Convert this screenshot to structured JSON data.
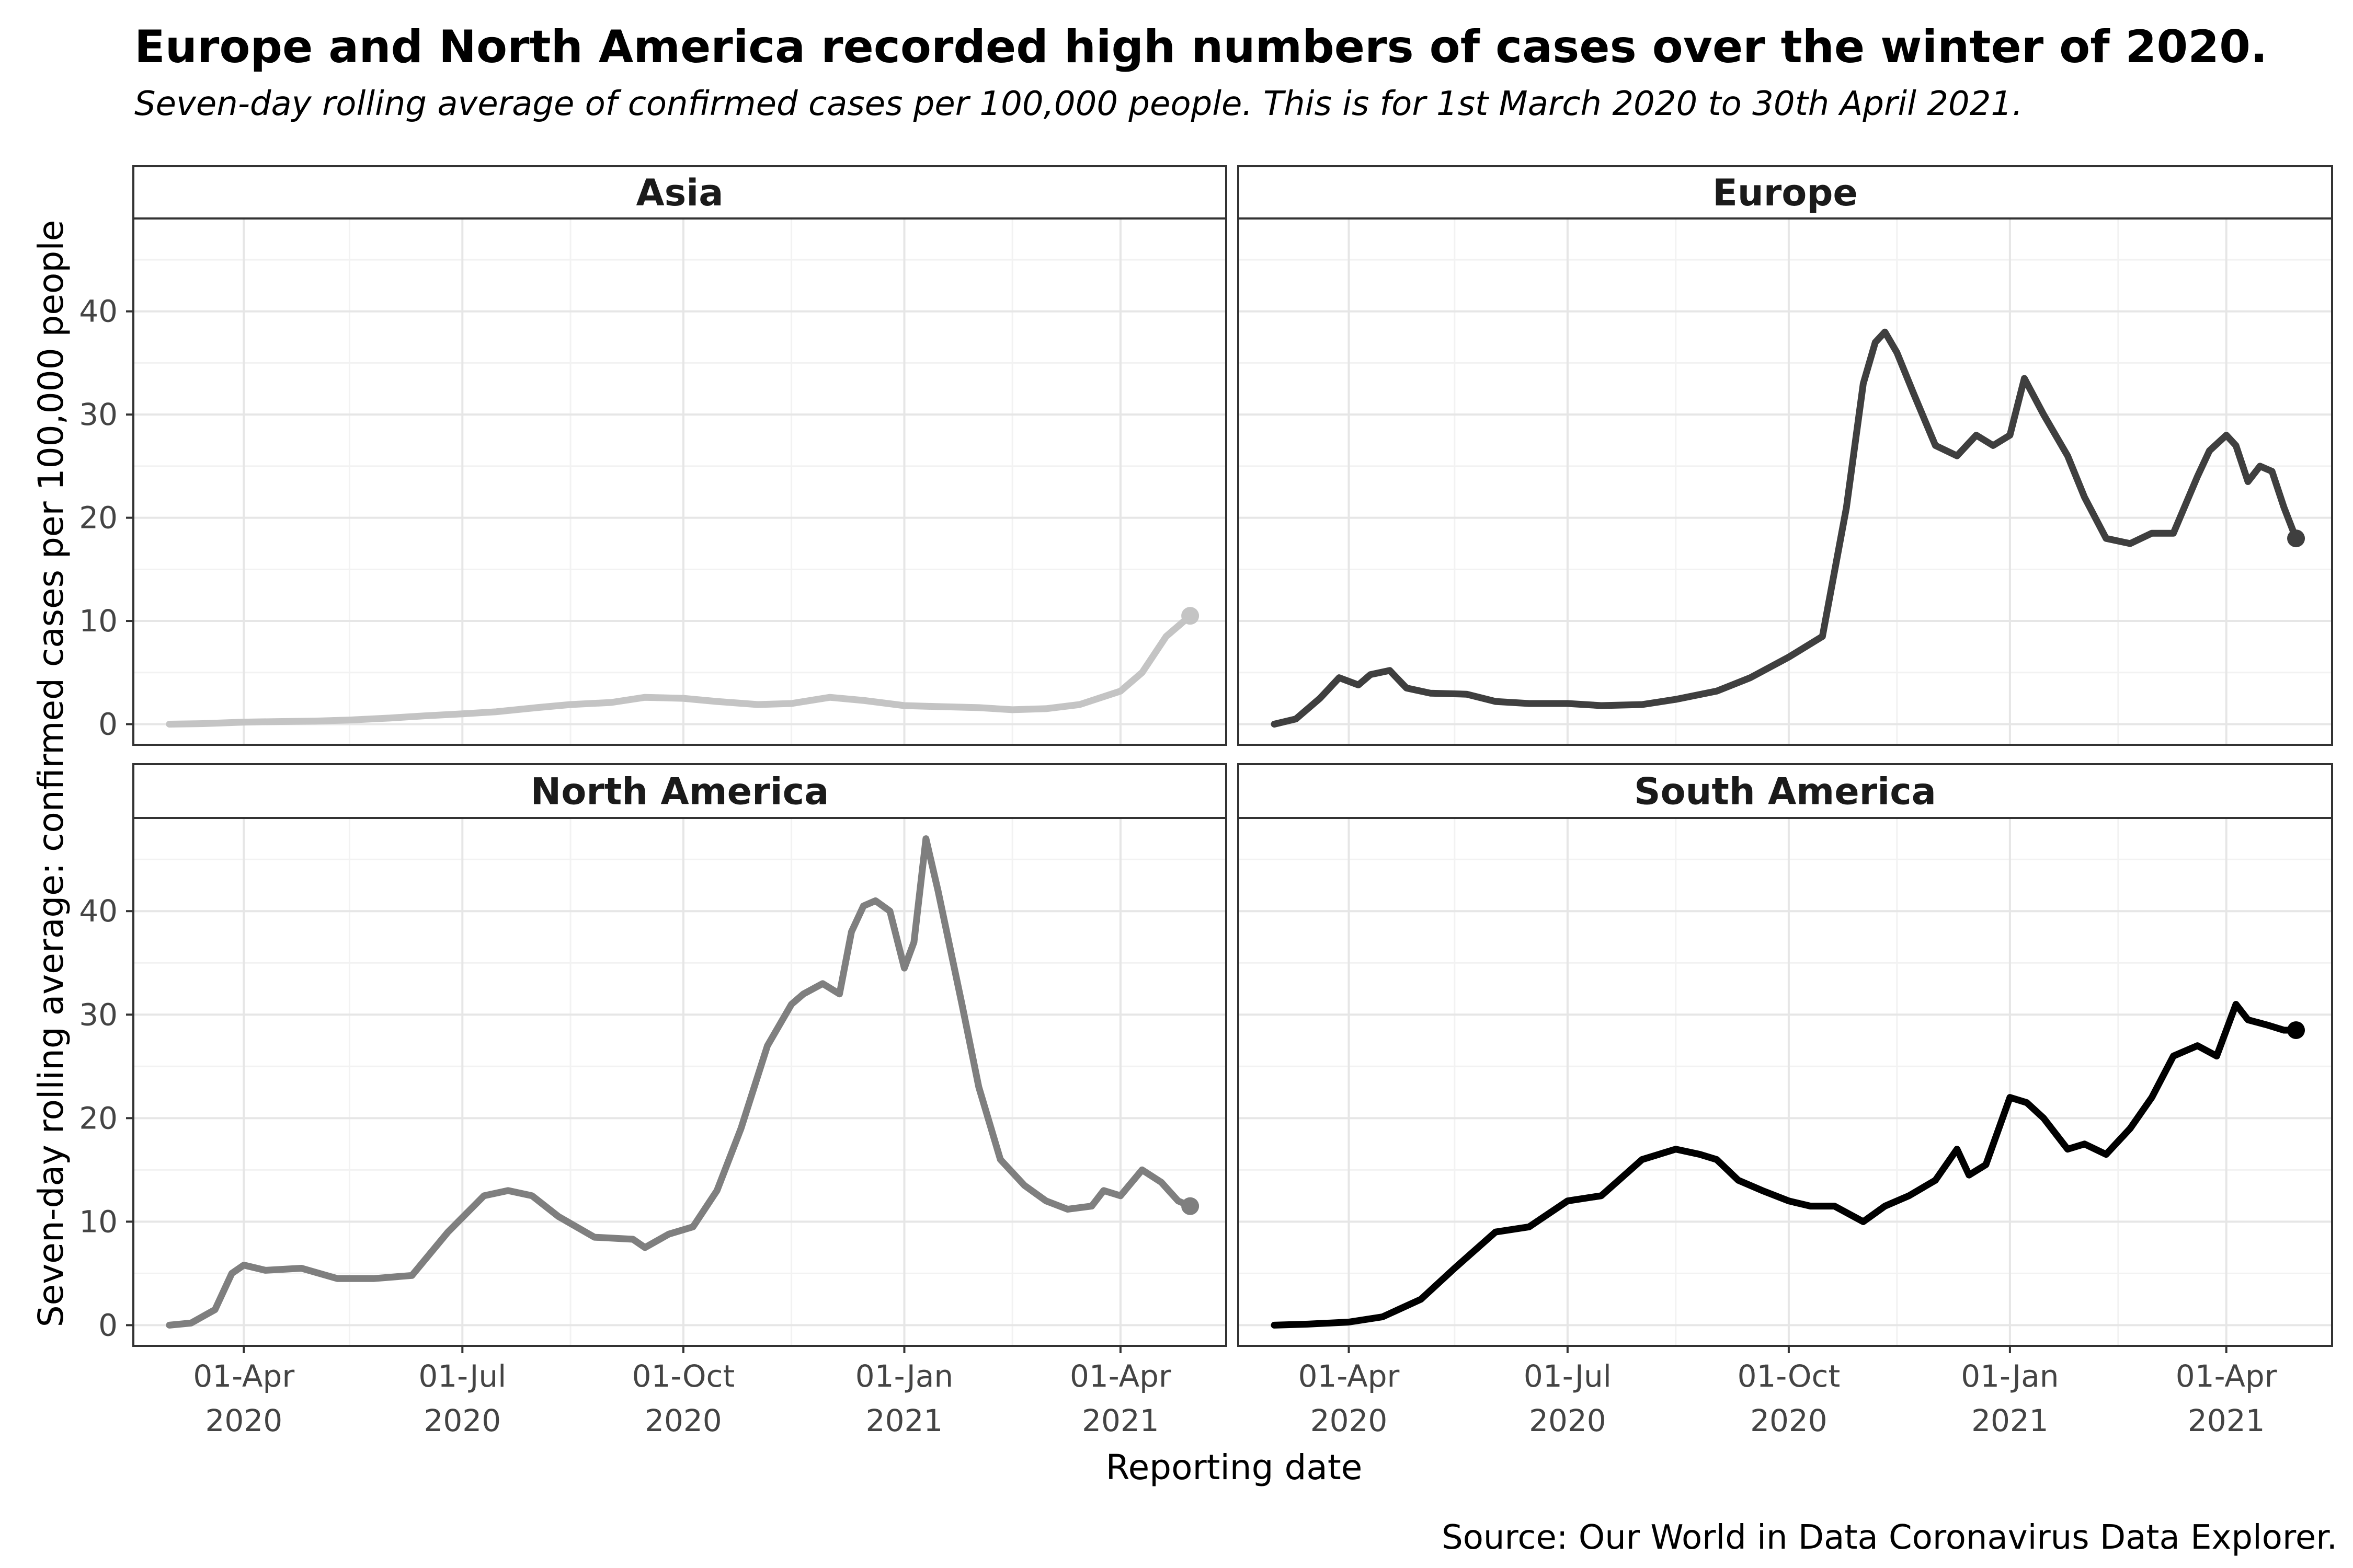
{
  "title": "Europe and North America recorded high numbers of cases over the winter of 2020.",
  "subtitle": "Seven-day rolling average of confirmed cases per 100,000 people. This is for 1st March 2020 to 30th April 2021.",
  "source": "Source: Our World in Data Coronavirus Data Explorer.",
  "colors": {
    "Asia": "#c4c4c4",
    "Europe": "#3f3f3f",
    "North America": "#7f7f7f",
    "South America": "#000000",
    "grid_major": "#e6e6e6",
    "grid_minor": "#f2f2f2",
    "panel_border": "#333333"
  },
  "chart_data": {
    "type": "line",
    "layout": "facet-grid 2x2",
    "xlabel": "Reporting date",
    "ylabel": "Seven-day rolling average: confirmed cases per 100,000 people",
    "xlim": [
      "2020-02-15",
      "2021-05-15"
    ],
    "ylim": [
      -2,
      49
    ],
    "x_ticks": [
      "2020-04-01",
      "2020-07-01",
      "2020-10-01",
      "2021-01-01",
      "2021-04-01"
    ],
    "x_tick_labels": [
      [
        "01-Apr",
        "2020"
      ],
      [
        "01-Jul",
        "2020"
      ],
      [
        "01-Oct",
        "2020"
      ],
      [
        "01-Jan",
        "2021"
      ],
      [
        "01-Apr",
        "2021"
      ]
    ],
    "y_ticks": [
      0,
      10,
      20,
      30,
      40
    ],
    "y_tick_labels": [
      "0",
      "10",
      "20",
      "30",
      "40"
    ],
    "grid": true,
    "legend": "none",
    "end_point_marker": true,
    "series": [
      {
        "name": "Asia",
        "x": [
          "2020-03-01",
          "2020-03-15",
          "2020-04-01",
          "2020-04-15",
          "2020-05-01",
          "2020-05-15",
          "2020-06-01",
          "2020-06-15",
          "2020-07-01",
          "2020-07-15",
          "2020-08-01",
          "2020-08-15",
          "2020-09-01",
          "2020-09-15",
          "2020-10-01",
          "2020-10-15",
          "2020-11-01",
          "2020-11-15",
          "2020-12-01",
          "2020-12-15",
          "2021-01-01",
          "2021-01-15",
          "2021-02-01",
          "2021-02-15",
          "2021-03-01",
          "2021-03-15",
          "2021-04-01",
          "2021-04-10",
          "2021-04-20",
          "2021-04-30"
        ],
        "y": [
          0.0,
          0.05,
          0.2,
          0.25,
          0.3,
          0.4,
          0.6,
          0.8,
          1.0,
          1.2,
          1.6,
          1.9,
          2.1,
          2.6,
          2.5,
          2.2,
          1.9,
          2.0,
          2.6,
          2.3,
          1.8,
          1.7,
          1.6,
          1.4,
          1.5,
          1.9,
          3.2,
          5.0,
          8.5,
          10.5
        ]
      },
      {
        "name": "Europe",
        "x": [
          "2020-03-01",
          "2020-03-10",
          "2020-03-20",
          "2020-03-28",
          "2020-04-05",
          "2020-04-10",
          "2020-04-18",
          "2020-04-25",
          "2020-05-05",
          "2020-05-20",
          "2020-06-01",
          "2020-06-15",
          "2020-07-01",
          "2020-07-15",
          "2020-08-01",
          "2020-08-15",
          "2020-09-01",
          "2020-09-15",
          "2020-10-01",
          "2020-10-15",
          "2020-10-25",
          "2020-11-01",
          "2020-11-06",
          "2020-11-10",
          "2020-11-15",
          "2020-11-22",
          "2020-12-01",
          "2020-12-10",
          "2020-12-18",
          "2020-12-25",
          "2021-01-01",
          "2021-01-07",
          "2021-01-15",
          "2021-01-25",
          "2021-02-01",
          "2021-02-10",
          "2021-02-20",
          "2021-03-01",
          "2021-03-10",
          "2021-03-20",
          "2021-03-25",
          "2021-04-01",
          "2021-04-05",
          "2021-04-10",
          "2021-04-15",
          "2021-04-20",
          "2021-04-25",
          "2021-04-30"
        ],
        "y": [
          0.0,
          0.5,
          2.5,
          4.5,
          3.8,
          4.8,
          5.2,
          3.5,
          3.0,
          2.9,
          2.2,
          2.0,
          2.0,
          1.8,
          1.9,
          2.4,
          3.2,
          4.5,
          6.5,
          8.5,
          21.0,
          33.0,
          37.0,
          38.0,
          36.0,
          32.0,
          27.0,
          26.0,
          28.0,
          27.0,
          28.0,
          33.5,
          30.0,
          26.0,
          22.0,
          18.0,
          17.5,
          18.5,
          18.5,
          24.0,
          26.5,
          28.0,
          27.0,
          23.5,
          25.0,
          24.5,
          21.0,
          18.0
        ]
      },
      {
        "name": "North America",
        "x": [
          "2020-03-01",
          "2020-03-10",
          "2020-03-20",
          "2020-03-27",
          "2020-04-01",
          "2020-04-10",
          "2020-04-25",
          "2020-05-10",
          "2020-05-25",
          "2020-06-10",
          "2020-06-25",
          "2020-07-10",
          "2020-07-20",
          "2020-07-30",
          "2020-08-10",
          "2020-08-25",
          "2020-09-10",
          "2020-09-15",
          "2020-09-25",
          "2020-10-05",
          "2020-10-15",
          "2020-10-25",
          "2020-11-05",
          "2020-11-15",
          "2020-11-20",
          "2020-11-28",
          "2020-12-05",
          "2020-12-10",
          "2020-12-15",
          "2020-12-20",
          "2020-12-26",
          "2021-01-01",
          "2021-01-05",
          "2021-01-10",
          "2021-01-15",
          "2021-01-25",
          "2021-02-01",
          "2021-02-10",
          "2021-02-20",
          "2021-03-01",
          "2021-03-10",
          "2021-03-20",
          "2021-03-25",
          "2021-04-01",
          "2021-04-10",
          "2021-04-18",
          "2021-04-25",
          "2021-04-30"
        ],
        "y": [
          0.0,
          0.2,
          1.5,
          5.0,
          5.8,
          5.3,
          5.5,
          4.5,
          4.5,
          4.8,
          9.0,
          12.5,
          13.0,
          12.5,
          10.5,
          8.5,
          8.3,
          7.5,
          8.8,
          9.5,
          13.0,
          19.0,
          27.0,
          31.0,
          32.0,
          33.0,
          32.0,
          38.0,
          40.5,
          41.0,
          40.0,
          34.5,
          37.0,
          47.0,
          42.0,
          31.0,
          23.0,
          16.0,
          13.5,
          12.0,
          11.2,
          11.5,
          13.0,
          12.5,
          15.0,
          13.8,
          12.0,
          11.5
        ]
      },
      {
        "name": "South America",
        "x": [
          "2020-03-01",
          "2020-03-15",
          "2020-04-01",
          "2020-04-15",
          "2020-05-01",
          "2020-05-15",
          "2020-06-01",
          "2020-06-15",
          "2020-07-01",
          "2020-07-15",
          "2020-08-01",
          "2020-08-15",
          "2020-08-25",
          "2020-09-01",
          "2020-09-10",
          "2020-09-20",
          "2020-10-01",
          "2020-10-10",
          "2020-10-20",
          "2020-11-01",
          "2020-11-10",
          "2020-11-20",
          "2020-12-01",
          "2020-12-10",
          "2020-12-15",
          "2020-12-22",
          "2021-01-01",
          "2021-01-08",
          "2021-01-15",
          "2021-01-25",
          "2021-02-01",
          "2021-02-10",
          "2021-02-20",
          "2021-03-01",
          "2021-03-10",
          "2021-03-20",
          "2021-03-28",
          "2021-04-05",
          "2021-04-10",
          "2021-04-18",
          "2021-04-25",
          "2021-04-30"
        ],
        "y": [
          0.0,
          0.1,
          0.3,
          0.8,
          2.5,
          5.5,
          9.0,
          9.5,
          12.0,
          12.5,
          16.0,
          17.0,
          16.5,
          16.0,
          14.0,
          13.0,
          12.0,
          11.5,
          11.5,
          10.0,
          11.5,
          12.5,
          14.0,
          17.0,
          14.5,
          15.5,
          22.0,
          21.5,
          20.0,
          17.0,
          17.5,
          16.5,
          19.0,
          22.0,
          26.0,
          27.0,
          26.0,
          31.0,
          29.5,
          29.0,
          28.5,
          28.5
        ]
      }
    ]
  }
}
